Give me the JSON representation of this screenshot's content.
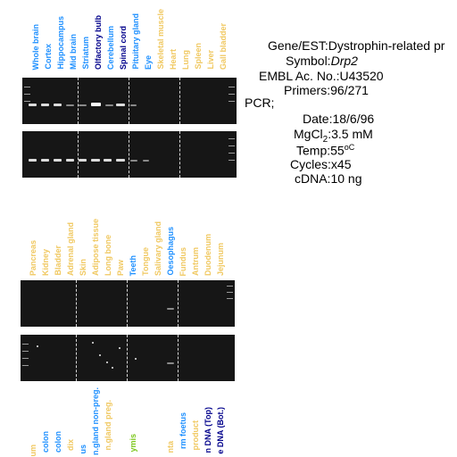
{
  "panel1": {
    "lanes": [
      {
        "label": "Whole brain",
        "color": "#1e90ff"
      },
      {
        "label": "Cortex",
        "color": "#1e90ff"
      },
      {
        "label": "Hippocampus",
        "color": "#1e90ff"
      },
      {
        "label": "Mid brain",
        "color": "#1e90ff"
      },
      {
        "label": "Striatum",
        "color": "#1e90ff"
      },
      {
        "label": "Olfactory bulb",
        "color": "#00008b"
      },
      {
        "label": "Cerebellum",
        "color": "#1e90ff"
      },
      {
        "label": "Spinal cord",
        "color": "#00008b"
      },
      {
        "label": "Pituitary gland",
        "color": "#1e90ff"
      },
      {
        "label": "Eye",
        "color": "#1e90ff"
      },
      {
        "label": "Skeletal muscle",
        "color": "#f0c860"
      },
      {
        "label": "Heart",
        "color": "#f0c860"
      },
      {
        "label": "Lung",
        "color": "#f0c860"
      },
      {
        "label": "Spleen",
        "color": "#f0c860"
      },
      {
        "label": "Liver",
        "color": "#f0c860"
      },
      {
        "label": "Gall bladder",
        "color": "#f0c860"
      }
    ]
  },
  "panel2": {
    "lanes": [
      {
        "label": "Pancreas",
        "color": "#f0c860"
      },
      {
        "label": "Kidney",
        "color": "#f0c860"
      },
      {
        "label": "Bladder",
        "color": "#f0c860"
      },
      {
        "label": "Adrenal gland",
        "color": "#f0c860"
      },
      {
        "label": "Skin",
        "color": "#f0c860"
      },
      {
        "label": "Adipose tissue",
        "color": "#f0c860"
      },
      {
        "label": "Long bone",
        "color": "#f0c860"
      },
      {
        "label": "Paw",
        "color": "#f0c860"
      },
      {
        "label": "Teeth",
        "color": "#1e90ff"
      },
      {
        "label": "Tongue",
        "color": "#f0c860"
      },
      {
        "label": "Salivary gland",
        "color": "#f0c860"
      },
      {
        "label": "Oesophagus",
        "color": "#1e90ff"
      },
      {
        "label": "Fundus",
        "color": "#f0c860"
      },
      {
        "label": "Antrum",
        "color": "#f0c860"
      },
      {
        "label": "Duodenum",
        "color": "#f0c860"
      },
      {
        "label": "Jejunum",
        "color": "#f0c860"
      }
    ]
  },
  "panel3": {
    "lanes": [
      {
        "label": "um",
        "color": "#f0c860"
      },
      {
        "label": "colon",
        "color": "#1e90ff"
      },
      {
        "label": "colon",
        "color": "#1e90ff"
      },
      {
        "label": "dix",
        "color": "#f0c860"
      },
      {
        "label": "us",
        "color": "#1e90ff"
      },
      {
        "label": "n.gland non-preg.",
        "color": "#1e90ff"
      },
      {
        "label": "n.gland preg.",
        "color": "#f0c860"
      },
      {
        "label": "",
        "color": "#f0c860"
      },
      {
        "label": "ymis",
        "color": "#7ec820"
      },
      {
        "label": "",
        "color": "#f0c860"
      },
      {
        "label": "",
        "color": "#f0c860"
      },
      {
        "label": "nta",
        "color": "#f0c860"
      },
      {
        "label": "rm foetus",
        "color": "#1e90ff"
      },
      {
        "label": "product",
        "color": "#f0c860"
      },
      {
        "label": "n DNA (Top)",
        "color": "#00008b"
      },
      {
        "label": "e DNA (Bot.)",
        "color": "#00008b"
      }
    ]
  },
  "info": {
    "gene_key": "Gene/EST:",
    "gene_val": "Dystrophin-related pr",
    "symbol_key": "Symbol:",
    "symbol_val": "Drp2",
    "embl_key": "EMBL Ac. No.:",
    "embl_val": "U43520",
    "primers_key": "Primers:",
    "primers_val": "96/271",
    "pcr_label": "PCR;",
    "date_key": "Date:",
    "date_val": "18/6/96",
    "mgcl_key": "MgCl",
    "mgcl_sub": "2",
    "mgcl_colon": ":",
    "mgcl_val": "3.5 mM",
    "temp_key": "Temp:",
    "temp_val": "55",
    "temp_unit": "oC",
    "cycles_key": "Cycles:",
    "cycles_val": "x45",
    "cdna_key": "cDNA:",
    "cdna_val": "10 ng"
  }
}
